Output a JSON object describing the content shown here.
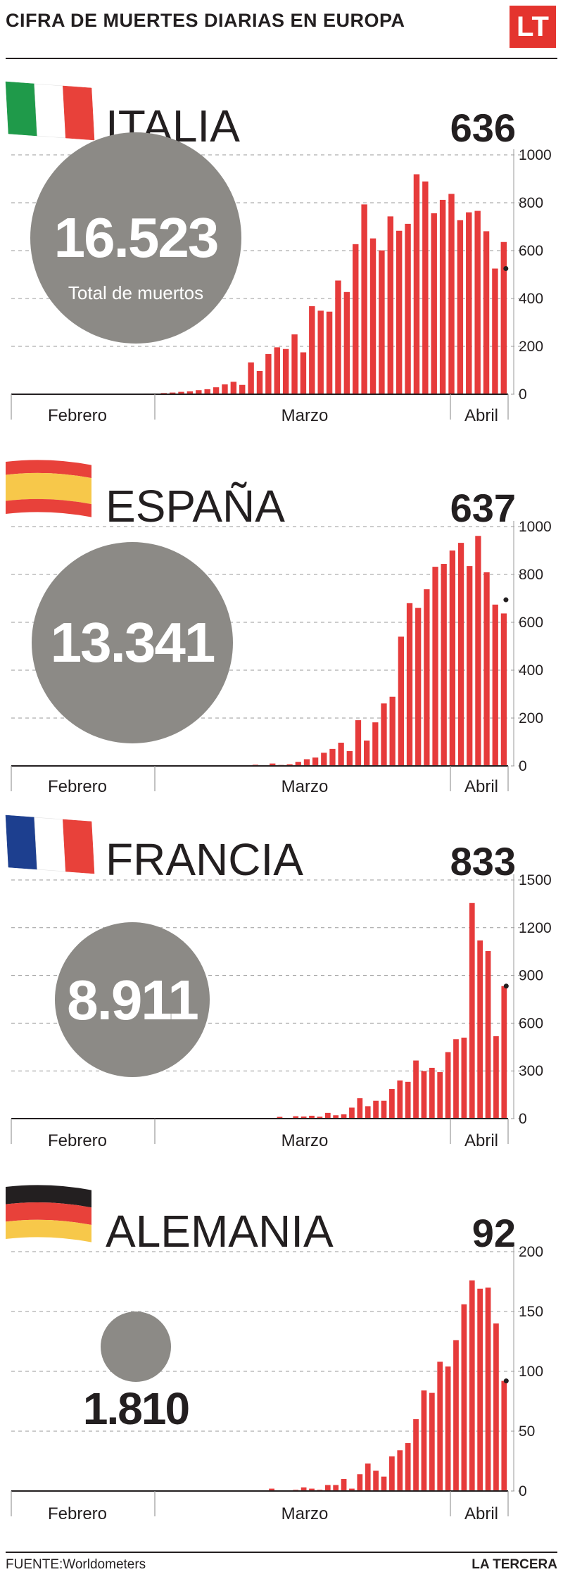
{
  "header": {
    "title": "CIFRA DE MUERTES DIARIAS EN EUROPA",
    "logo": "LT"
  },
  "footer": {
    "source": "FUENTE:Worldometers",
    "publisher": "LA TERCERA"
  },
  "colors": {
    "bar": "#e63b3b",
    "circle": "#8c8a86",
    "text": "#231f20",
    "gridline": "#9a9a9a",
    "logo_bg": "#e4342e"
  },
  "chart_data": [
    {
      "type": "bar",
      "country": "ITALIA",
      "flag_icon": "italy-flag-icon",
      "latest_value": "636",
      "total": "16.523",
      "total_label": "Total de muertos",
      "month_labels": [
        "Febrero",
        "Marzo",
        "Abril"
      ],
      "ylim": [
        0,
        1000
      ],
      "yticks": [
        0,
        200,
        400,
        600,
        800,
        1000
      ],
      "values": [
        0,
        0,
        0,
        0,
        0,
        0,
        0,
        0,
        0,
        0,
        0,
        1,
        1,
        1,
        2,
        3,
        3,
        5,
        7,
        10,
        12,
        17,
        21,
        29,
        41,
        52,
        39,
        133,
        97,
        168,
        196,
        189,
        250,
        175,
        368,
        349,
        345,
        475,
        427,
        627,
        793,
        651,
        601,
        743,
        683,
        712,
        919,
        889,
        756,
        812,
        837,
        727,
        760,
        766,
        681,
        525,
        636
      ],
      "grid_value": 525
    },
    {
      "type": "bar",
      "country": "ESPAÑA",
      "flag_icon": "spain-flag-icon",
      "latest_value": "637",
      "total": "13.341",
      "total_label": "",
      "month_labels": [
        "Febrero",
        "Marzo",
        "Abril"
      ],
      "ylim": [
        0,
        1000
      ],
      "yticks": [
        0,
        200,
        400,
        600,
        800,
        1000
      ],
      "values": [
        0,
        0,
        0,
        0,
        0,
        0,
        0,
        0,
        0,
        0,
        0,
        0,
        0,
        0,
        0,
        0,
        0,
        0,
        0,
        0,
        0,
        0,
        0,
        0,
        0,
        1,
        1,
        2,
        5,
        3,
        10,
        4,
        7,
        17,
        28,
        35,
        55,
        71,
        97,
        62,
        191,
        106,
        182,
        261,
        289,
        540,
        680,
        660,
        738,
        832,
        844,
        900,
        932,
        835,
        961,
        809,
        674,
        637
      ],
      "grid_value": 694
    },
    {
      "type": "bar",
      "country": "FRANCIA",
      "flag_icon": "france-flag-icon",
      "latest_value": "833",
      "total": "8.911",
      "total_label": "",
      "month_labels": [
        "Febrero",
        "Marzo",
        "Abril"
      ],
      "ylim": [
        0,
        1500
      ],
      "yticks": [
        0,
        300,
        600,
        900,
        1200,
        1500
      ],
      "values": [
        0,
        0,
        0,
        0,
        0,
        0,
        0,
        0,
        0,
        0,
        0,
        0,
        0,
        0,
        0,
        0,
        0,
        0,
        0,
        0,
        0,
        0,
        0,
        0,
        0,
        0,
        0,
        0,
        0,
        1,
        2,
        0,
        3,
        11,
        3,
        15,
        13,
        18,
        12,
        36,
        21,
        27,
        69,
        128,
        78,
        112,
        112,
        186,
        240,
        231,
        365,
        299,
        319,
        292,
        418,
        499,
        509,
        1355,
        1120,
        1053,
        518,
        833
      ],
      "grid_value": 833
    },
    {
      "type": "bar",
      "country": "ALEMANIA",
      "flag_icon": "germany-flag-icon",
      "latest_value": "92",
      "total": "1.810",
      "total_label": "",
      "month_labels": [
        "Febrero",
        "Marzo",
        "Abril"
      ],
      "ylim": [
        0,
        200
      ],
      "yticks": [
        0,
        50,
        100,
        150,
        200
      ],
      "values": [
        0,
        0,
        0,
        0,
        0,
        0,
        0,
        0,
        0,
        0,
        0,
        0,
        0,
        0,
        0,
        0,
        0,
        0,
        0,
        0,
        0,
        0,
        0,
        0,
        0,
        0,
        0,
        0,
        0,
        0,
        0,
        0,
        2,
        0,
        0,
        1,
        3,
        2,
        1,
        5,
        5,
        10,
        2,
        14,
        23,
        17,
        12,
        29,
        34,
        40,
        60,
        84,
        82,
        108,
        104,
        126,
        156,
        176,
        169,
        170,
        140,
        92
      ],
      "grid_value": 92
    }
  ]
}
